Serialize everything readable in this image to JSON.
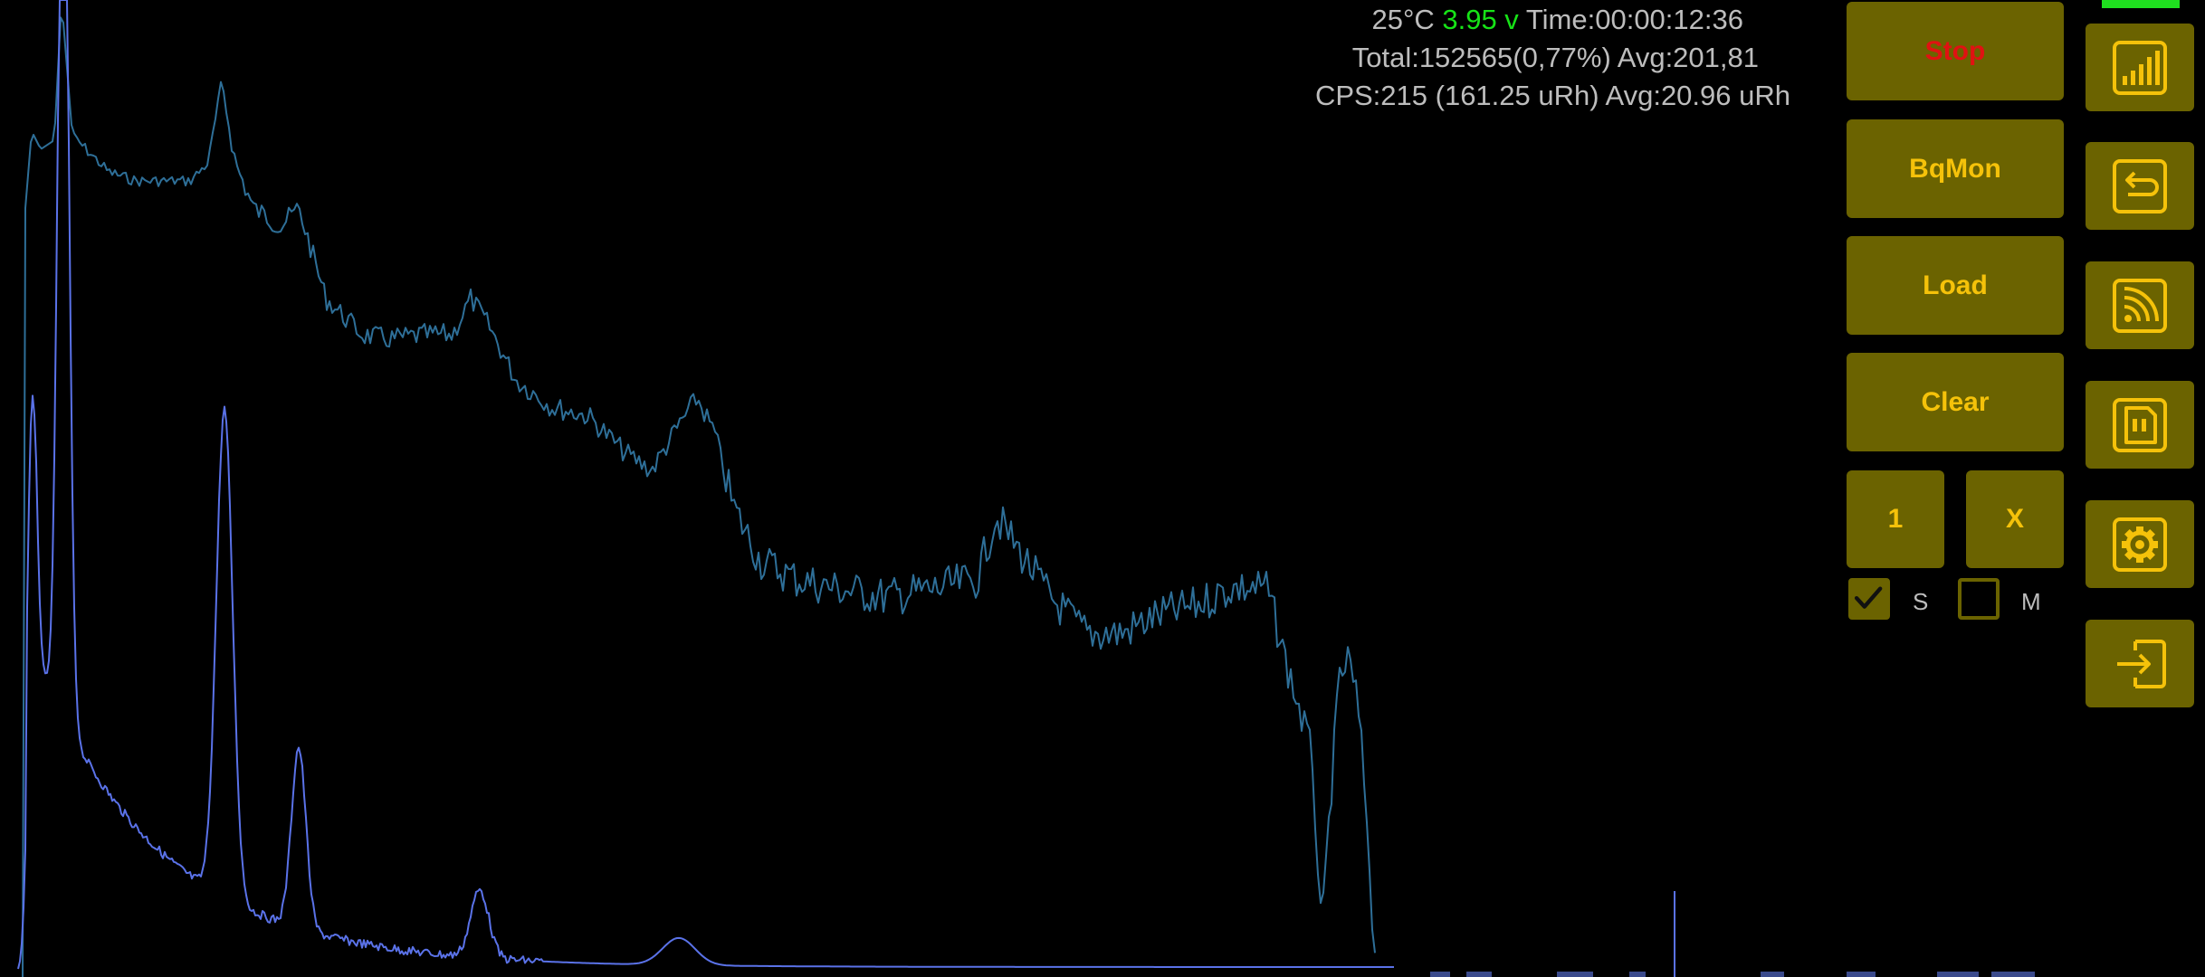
{
  "status": {
    "temperature": "25°C",
    "voltage": "3.95 v",
    "time": "Time:00:00:12:36",
    "total": "Total:152565(0,77%) Avg:201,81",
    "cps": "CPS:215 (161.25 uRh) Avg:20.96 uRh"
  },
  "buttons": {
    "stop": "Stop",
    "bqmon": "BqMon",
    "load": "Load",
    "clear": "Clear",
    "one": "1",
    "x": "X"
  },
  "checkboxes": {
    "s": {
      "label": "S",
      "checked": true
    },
    "m": {
      "label": "M",
      "checked": false
    }
  },
  "side_icons": [
    "signal-bars-icon",
    "back-arrow-icon",
    "rss-feed-icon",
    "sd-card-icon",
    "gear-icon",
    "login-arrow-icon"
  ],
  "colors": {
    "background": "#000000",
    "button_bg": "#6b6300",
    "button_text": "#f5c20a",
    "stop_text": "#e01212",
    "voltage_text": "#17e317",
    "status_text": "#bdbdbd",
    "spectrum_log": "#2e6f98",
    "spectrum_linear": "#5a72e8",
    "battery": "#1fe01f"
  },
  "chart_data": {
    "type": "line",
    "title": "",
    "xlabel": "",
    "ylabel": "",
    "series": [
      {
        "style": "log-scale",
        "color": "#2e6f98"
      },
      {
        "style": "linear-scale",
        "color": "#5a72e8"
      }
    ]
  }
}
